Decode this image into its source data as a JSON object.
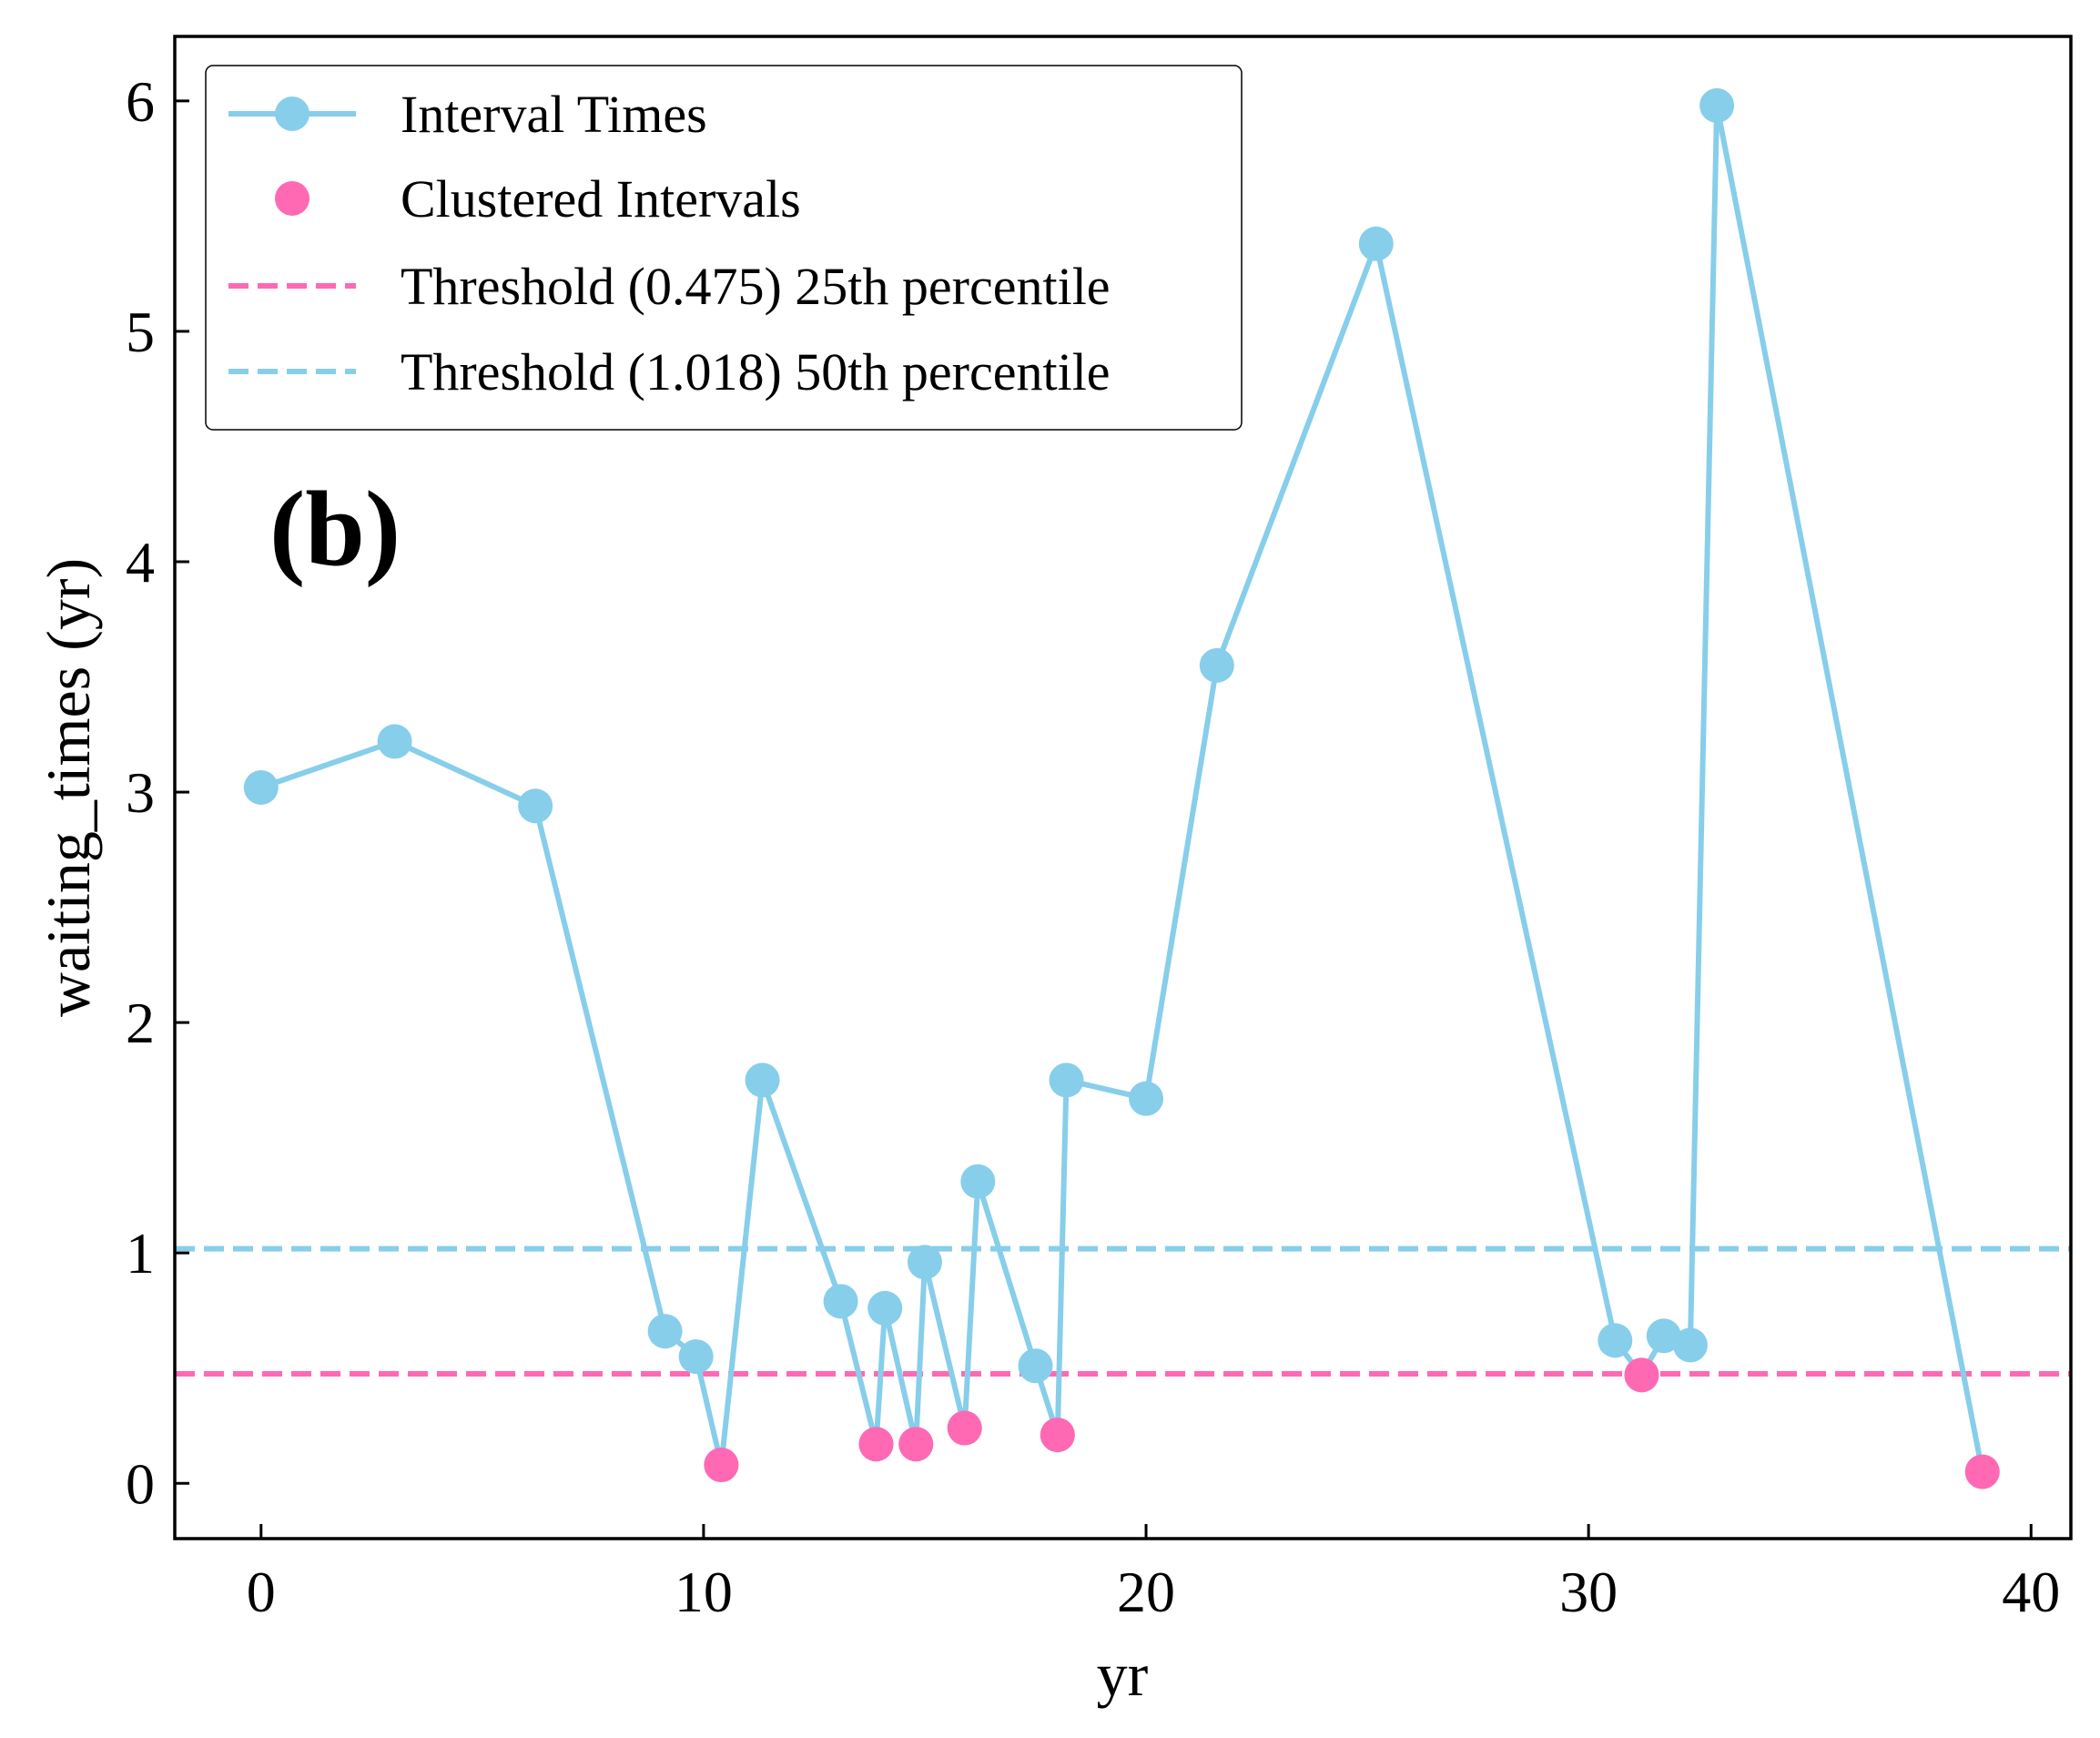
{
  "chart_data": {
    "type": "line",
    "panel_label": "(b)",
    "xlabel": "yr",
    "ylabel": "waiting_times (yr)",
    "xlim": [
      -1.95,
      40.9
    ],
    "ylim": [
      -0.24,
      6.28
    ],
    "x_ticks": [
      0,
      10,
      20,
      30,
      40
    ],
    "y_ticks": [
      0,
      1,
      2,
      3,
      4,
      5,
      6
    ],
    "grid": false,
    "legend_position": "top-left",
    "colors": {
      "interval": "#87CEEB",
      "clustered": "#FF69B4",
      "axis": "#000000"
    },
    "series": [
      {
        "name": "Interval Times",
        "style": "line-markers",
        "color": "#87CEEB",
        "x": [
          0.0,
          3.02,
          6.2,
          9.13,
          9.83,
          10.4,
          11.33,
          13.1,
          13.9,
          14.1,
          14.8,
          15.0,
          15.9,
          16.2,
          17.5,
          18.0,
          18.2,
          20.0,
          21.6,
          25.2,
          30.6,
          31.2,
          31.7,
          32.3,
          32.9,
          38.9
        ],
        "y": [
          3.02,
          3.22,
          2.94,
          0.66,
          0.55,
          0.08,
          1.75,
          0.79,
          0.17,
          0.76,
          0.17,
          0.96,
          0.24,
          1.31,
          0.51,
          0.21,
          1.75,
          1.67,
          3.55,
          5.38,
          0.62,
          0.47,
          0.64,
          0.6,
          5.98,
          0.05
        ]
      },
      {
        "name": "Clustered Intervals",
        "style": "markers",
        "color": "#FF69B4",
        "x": [
          10.4,
          13.9,
          14.8,
          15.9,
          18.0,
          31.2,
          38.9
        ],
        "y": [
          0.08,
          0.17,
          0.17,
          0.24,
          0.21,
          0.47,
          0.05
        ]
      }
    ],
    "thresholds": [
      {
        "name": "Threshold (0.475) 25th percentile",
        "value": 0.475,
        "color": "#FF69B4",
        "style": "dashed"
      },
      {
        "name": "Threshold (1.018) 50th percentile",
        "value": 1.018,
        "color": "#87CEEB",
        "style": "dashed"
      }
    ]
  }
}
